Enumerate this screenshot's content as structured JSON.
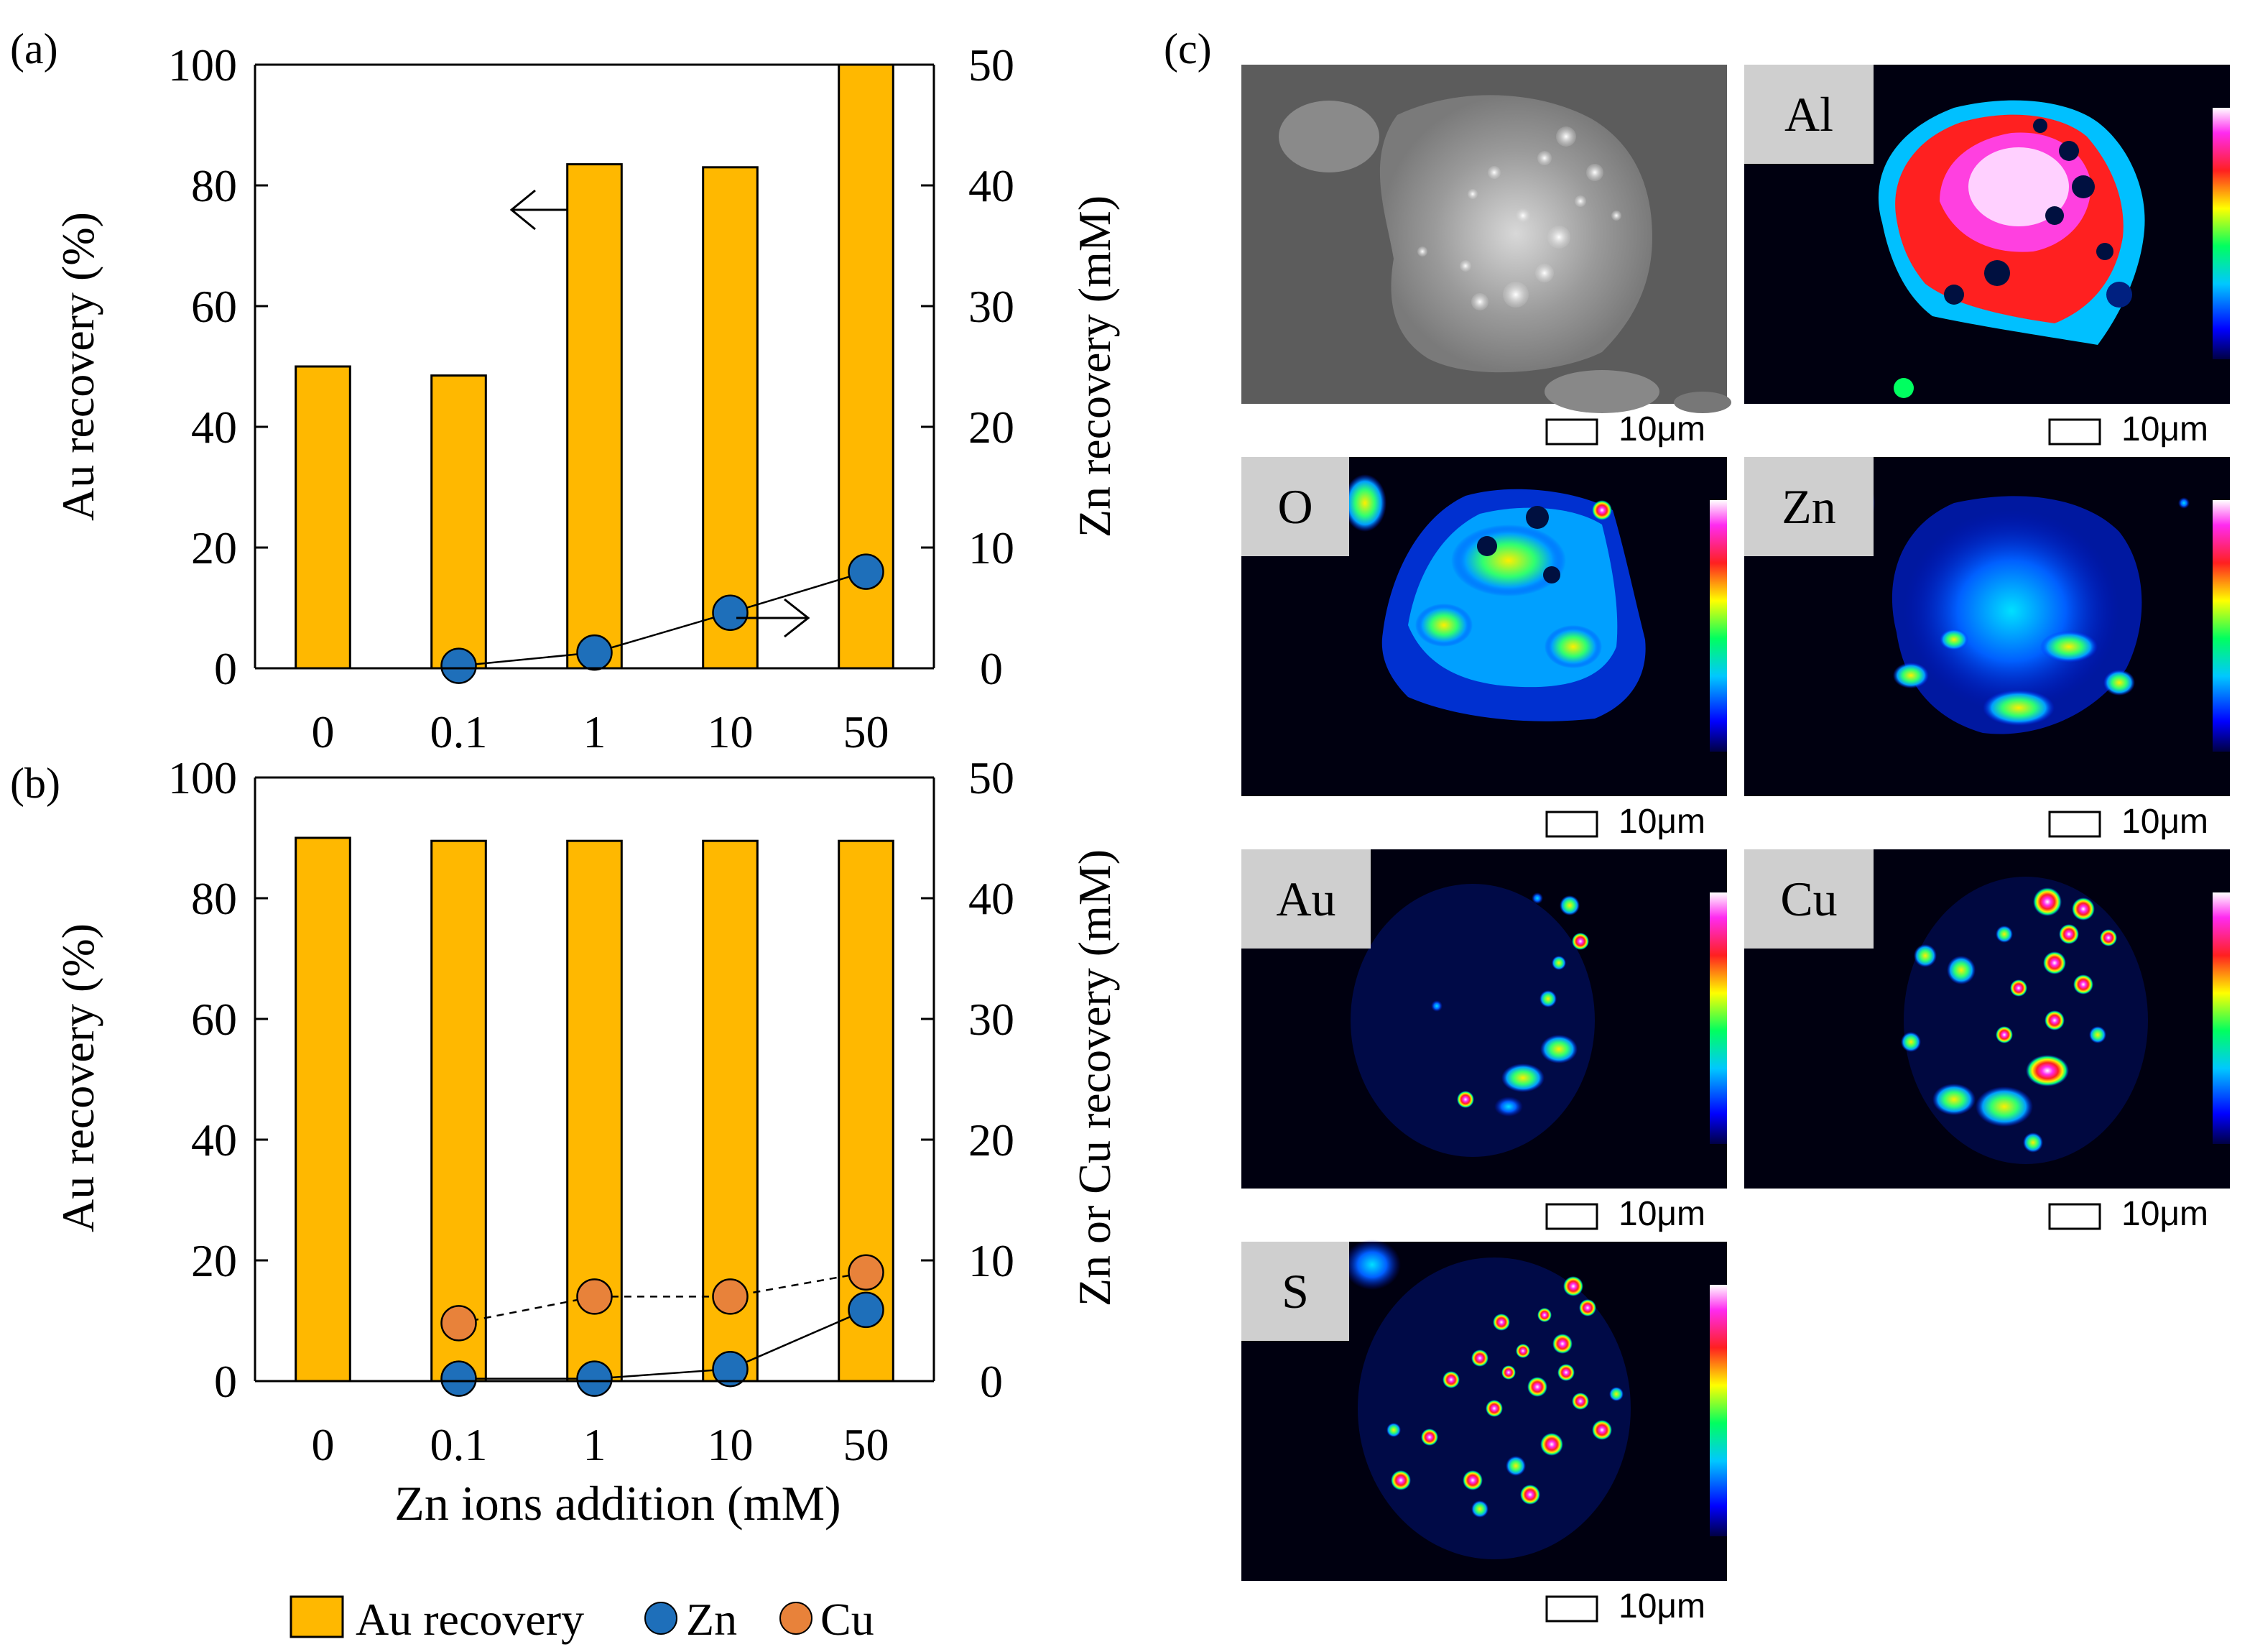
{
  "colors": {
    "bar": "#FFB800",
    "bar_stroke": "#000000",
    "zn": "#1E6FBA",
    "cu": "#E8823A",
    "axis": "#000000"
  },
  "chart_data": [
    {
      "panel": "(a)",
      "type": "bar",
      "categories": [
        "0",
        "0.1",
        "1",
        "10",
        "50"
      ],
      "ylabel": "Au recovery (%)",
      "y2label": "Zn recovery (mM)",
      "ylim": [
        0,
        100
      ],
      "y2lim": [
        0,
        50
      ],
      "yticks": [
        "0",
        "20",
        "40",
        "60",
        "80",
        "100"
      ],
      "y2ticks": [
        "0",
        "10",
        "20",
        "30",
        "40",
        "50"
      ],
      "series": [
        {
          "name": "Au recovery",
          "axis": "left",
          "kind": "bar",
          "values": [
            50,
            48.5,
            83.5,
            83,
            100
          ]
        },
        {
          "name": "Zn",
          "axis": "right",
          "kind": "line-marker",
          "style": "solid",
          "values": [
            null,
            0.2,
            1.3,
            4.6,
            8.0
          ]
        }
      ]
    },
    {
      "panel": "(b)",
      "type": "bar",
      "categories": [
        "0",
        "0.1",
        "1",
        "10",
        "50"
      ],
      "xlabel": "Zn ions addition (mM)",
      "ylabel": "Au recovery (%)",
      "y2label": "Zn or Cu recovery (mM)",
      "ylim": [
        0,
        100
      ],
      "y2lim": [
        0,
        50
      ],
      "yticks": [
        "0",
        "20",
        "40",
        "60",
        "80",
        "100"
      ],
      "y2ticks": [
        "0",
        "10",
        "20",
        "30",
        "40",
        "50"
      ],
      "series": [
        {
          "name": "Au recovery",
          "axis": "left",
          "kind": "bar",
          "values": [
            90,
            89.5,
            89.5,
            89.5,
            89.5
          ]
        },
        {
          "name": "Zn",
          "axis": "right",
          "kind": "line-marker",
          "style": "solid",
          "values": [
            null,
            0.2,
            0.2,
            1.0,
            5.9
          ]
        },
        {
          "name": "Cu",
          "axis": "right",
          "kind": "line-marker",
          "style": "dashed",
          "values": [
            null,
            4.8,
            7.0,
            7.0,
            9.0
          ]
        }
      ]
    }
  ],
  "legend": [
    {
      "label": "Au recovery",
      "kind": "bar"
    },
    {
      "label": "Zn",
      "kind": "zn"
    },
    {
      "label": "Cu",
      "kind": "cu"
    }
  ],
  "panel_c": {
    "label": "(c)",
    "scale_label": "10μm",
    "maps": [
      {
        "element": ""
      },
      {
        "element": "Al"
      },
      {
        "element": "O"
      },
      {
        "element": "Zn"
      },
      {
        "element": "Au"
      },
      {
        "element": "Cu"
      },
      {
        "element": "S"
      }
    ]
  }
}
